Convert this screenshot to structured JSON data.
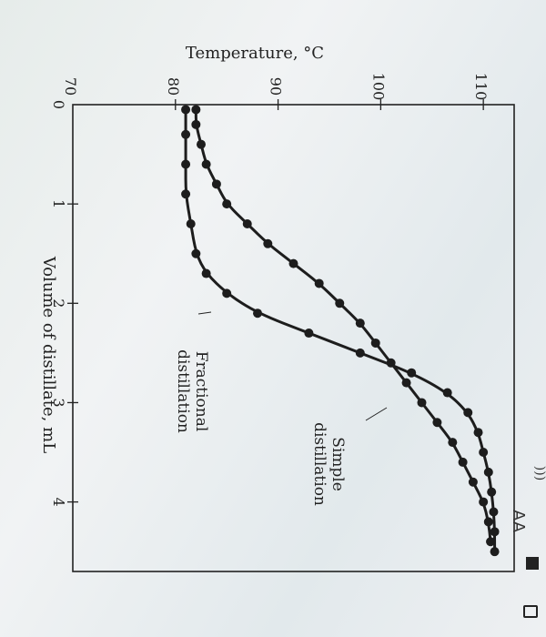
{
  "chart_data": {
    "type": "line",
    "orientation": "rotated-90-clockwise",
    "x_axis": {
      "label": "Volume of distillate, mL",
      "min": 0,
      "max": 4.7,
      "ticks": [
        "0",
        "1",
        "2",
        "3",
        "4"
      ]
    },
    "y_axis": {
      "label": "Temperature, °C",
      "min": 70,
      "max": 113,
      "ticks": [
        "70",
        "80",
        "90",
        "100",
        "110"
      ]
    },
    "series": [
      {
        "name": "Simple distillation",
        "x": [
          0.05,
          0.2,
          0.4,
          0.6,
          0.8,
          1.0,
          1.2,
          1.4,
          1.6,
          1.8,
          2.0,
          2.2,
          2.4,
          2.6,
          2.8,
          3.0,
          3.2,
          3.4,
          3.6,
          3.8,
          4.0,
          4.2,
          4.4
        ],
        "y": [
          82,
          82,
          82.5,
          83,
          84,
          85,
          87,
          89,
          91.5,
          94,
          96,
          98,
          99.5,
          101,
          102.5,
          104,
          105.5,
          107,
          108,
          109,
          110,
          110.5,
          110.7
        ]
      },
      {
        "name": "Fractional distillation",
        "x": [
          0.05,
          0.3,
          0.6,
          0.9,
          1.2,
          1.5,
          1.7,
          1.9,
          2.1,
          2.3,
          2.5,
          2.7,
          2.9,
          3.1,
          3.3,
          3.5,
          3.7,
          3.9,
          4.1,
          4.3,
          4.5
        ],
        "y": [
          81,
          81,
          81,
          81,
          81.5,
          82,
          83,
          85,
          88,
          93,
          98,
          103,
          106.5,
          108.5,
          109.5,
          110,
          110.5,
          110.8,
          111,
          111.1,
          111.1
        ]
      }
    ],
    "annotations": {
      "simple": [
        "Simple",
        "distillation"
      ],
      "fractional": [
        "Fractional",
        "distillation"
      ]
    }
  },
  "phone_ui": {
    "text_size_label": "AA"
  }
}
